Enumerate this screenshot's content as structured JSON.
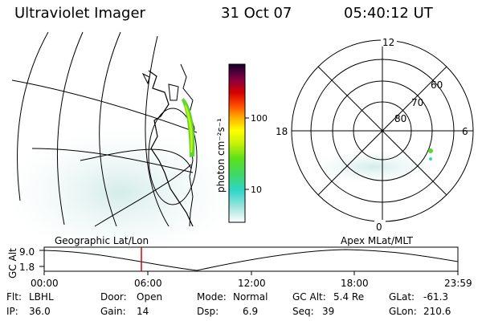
{
  "header": {
    "instrument": "Ultraviolet Imager",
    "date": "31 Oct 07",
    "time": "05:40:12 UT"
  },
  "colorbar": {
    "unit_label": "photon cm⁻²s⁻¹",
    "ticks": [
      "100",
      "10"
    ]
  },
  "polar_plot": {
    "mlt_labels": {
      "top": "12",
      "left": "18",
      "right": "6",
      "bottom": "0"
    },
    "lat_labels": [
      "60",
      "70",
      "80"
    ]
  },
  "orbit_panel": {
    "left_title": "Geographic Lat/Lon",
    "right_title": "Apex MLat/MLT",
    "y_axis_label": "GC Alt",
    "y_ticks": [
      "9.0",
      "1.8"
    ],
    "x_ticks": [
      "00:00",
      "06:00",
      "12:00",
      "18:00",
      "23:59"
    ],
    "current_time_fraction": 0.235
  },
  "info": {
    "row1": [
      {
        "label": "Flt:",
        "value": "LBHL"
      },
      {
        "label": "Door:",
        "value": "Open"
      },
      {
        "label": "Mode:",
        "value": "Normal"
      },
      {
        "label": "GC Alt:",
        "value": "5.4 Re"
      },
      {
        "label": "GLat:",
        "value": "-61.3"
      }
    ],
    "row2": [
      {
        "label": "IP:",
        "value": "36.0"
      },
      {
        "label": "Gain:",
        "value": "14"
      },
      {
        "label": "Dsp:",
        "value": "6.9"
      },
      {
        "label": "Seq:",
        "value": "39"
      },
      {
        "label": "GLon:",
        "value": "210.6"
      }
    ]
  }
}
